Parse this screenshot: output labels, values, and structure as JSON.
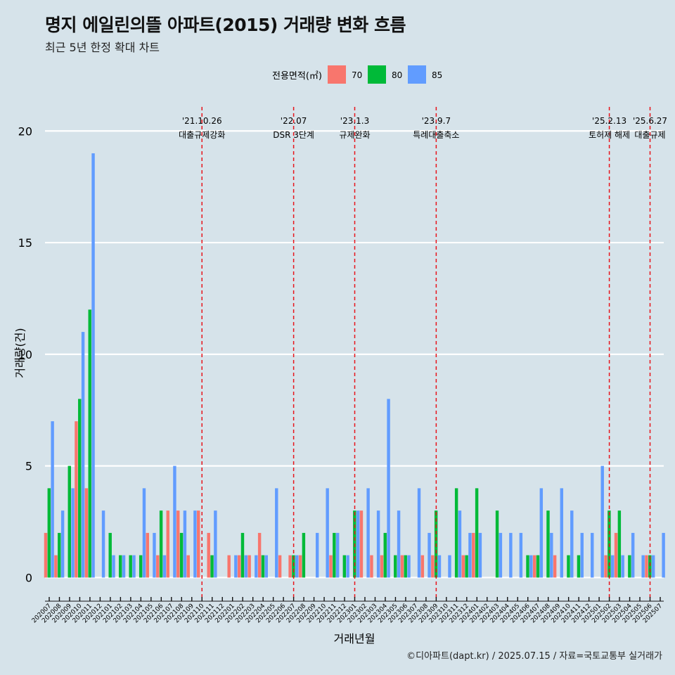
{
  "header": {
    "title": "명지 에일린의뜰 아파트(2015) 거래량 변화 흐름",
    "subtitle": "최근 5년 한정 확대 차트"
  },
  "caption": "©디아파트(dapt.kr) / 2025.07.15 / 자료=국토교통부 실거래가",
  "colors": {
    "background": "#d6e3ea",
    "s70": "#f8766d",
    "s80": "#00ba38",
    "s85": "#619cff",
    "event_line": "#e8141b",
    "grid": "#ffffff"
  },
  "chart_data": {
    "type": "bar",
    "xlabel": "거래년월",
    "ylabel": "거래량(건)",
    "ylim": [
      -0.9,
      21.3
    ],
    "yticks": [
      0,
      5,
      10,
      15,
      20
    ],
    "legend": {
      "title": "전용면적(㎡)",
      "position": "top"
    },
    "grid": true,
    "categories": [
      "202007",
      "202008",
      "202009",
      "202010",
      "202011",
      "202012",
      "202101",
      "202102",
      "202103",
      "202104",
      "202105",
      "202106",
      "202107",
      "202108",
      "202109",
      "202110",
      "202111",
      "202112",
      "202201",
      "202202",
      "202203",
      "202204",
      "202205",
      "202206",
      "202207",
      "202208",
      "202209",
      "202210",
      "202211",
      "202212",
      "202301",
      "202302",
      "202303",
      "202304",
      "202305",
      "202306",
      "202307",
      "202308",
      "202309",
      "202310",
      "202311",
      "202312",
      "202401",
      "202402",
      "202403",
      "202404",
      "202405",
      "202406",
      "202407",
      "202408",
      "202409",
      "202410",
      "202411",
      "202412",
      "202501",
      "202502",
      "202503",
      "202504",
      "202505",
      "202506",
      "202507"
    ],
    "series": [
      {
        "name": "70",
        "values": [
          2,
          1,
          0,
          7,
          4,
          0,
          0,
          0,
          0,
          0,
          2,
          1,
          3,
          3,
          1,
          3,
          2,
          0,
          1,
          1,
          1,
          2,
          0,
          1,
          1,
          1,
          0,
          0,
          1,
          0,
          0,
          3,
          1,
          1,
          0,
          1,
          0,
          1,
          1,
          0,
          0,
          1,
          2,
          0,
          0,
          0,
          0,
          0,
          1,
          0,
          1,
          0,
          0,
          0,
          0,
          1,
          2,
          0,
          0,
          1,
          0
        ]
      },
      {
        "name": "80",
        "values": [
          4,
          2,
          5,
          8,
          12,
          0,
          2,
          1,
          1,
          1,
          0,
          3,
          0,
          2,
          0,
          0,
          1,
          0,
          0,
          2,
          0,
          1,
          0,
          0,
          1,
          2,
          0,
          0,
          2,
          1,
          3,
          0,
          0,
          2,
          1,
          1,
          0,
          0,
          3,
          0,
          4,
          1,
          4,
          0,
          3,
          0,
          0,
          1,
          1,
          3,
          0,
          1,
          1,
          0,
          0,
          3,
          3,
          1,
          0,
          1,
          0
        ]
      },
      {
        "name": "85",
        "values": [
          7,
          3,
          4,
          11,
          19,
          3,
          1,
          1,
          1,
          4,
          2,
          1,
          5,
          3,
          3,
          0,
          3,
          0,
          1,
          1,
          1,
          1,
          4,
          0,
          1,
          0,
          2,
          4,
          2,
          1,
          3,
          4,
          3,
          8,
          3,
          1,
          4,
          2,
          1,
          1,
          3,
          2,
          2,
          0,
          2,
          2,
          2,
          1,
          4,
          2,
          4,
          3,
          2,
          2,
          5,
          1,
          1,
          2,
          1,
          1,
          2
        ]
      }
    ],
    "annotations": [
      {
        "x": "202110",
        "date": "'21.10.26",
        "label": "대출규제강화"
      },
      {
        "x": "202207",
        "date": "'22.07",
        "label": "DSR 3단계"
      },
      {
        "x": "202301",
        "date": "'23.1.3",
        "label": "규제완화"
      },
      {
        "x": "202309",
        "date": "'23.9.7",
        "label": "특례대출축소"
      },
      {
        "x": "202502",
        "date": "'25.2.13",
        "label": "토허제 해제"
      },
      {
        "x": "202506",
        "date": "'25.6.27",
        "label": "대출규제"
      }
    ]
  }
}
